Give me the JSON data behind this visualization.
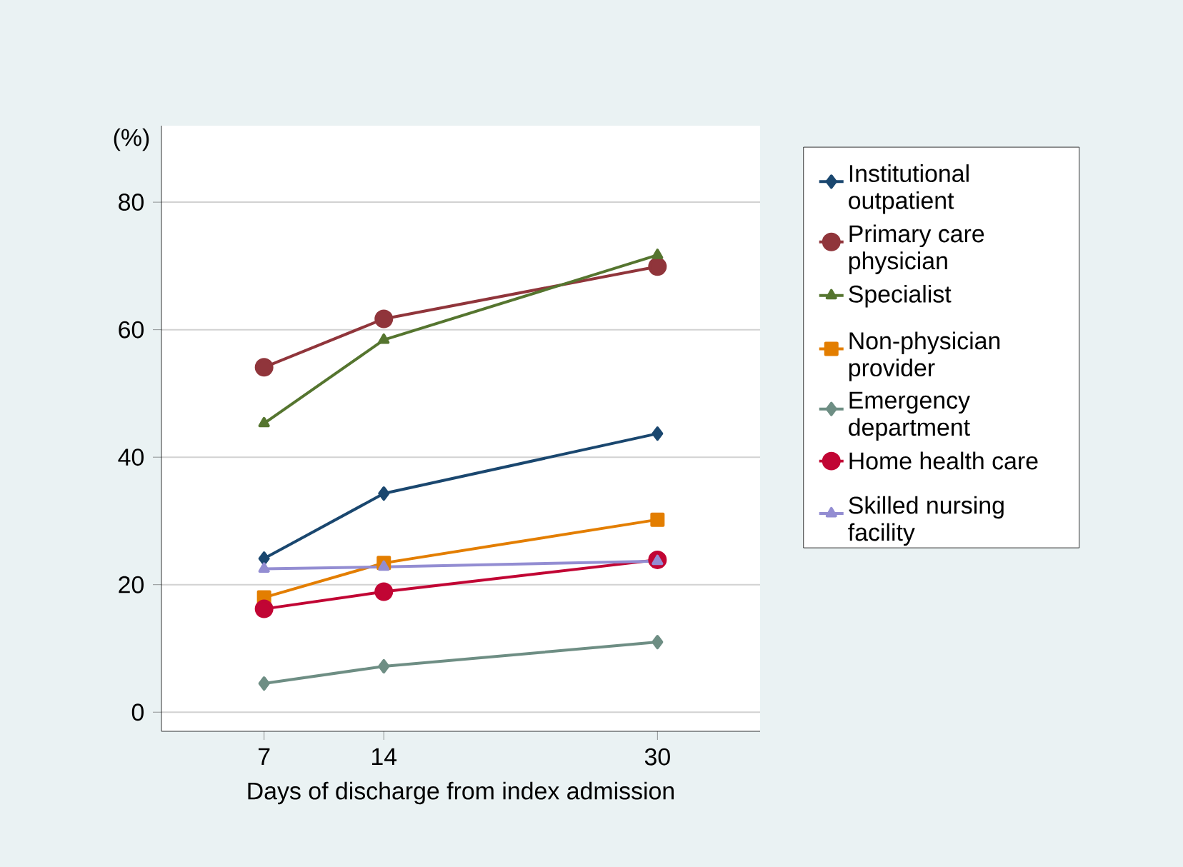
{
  "chart_data": {
    "type": "line",
    "xlabel": "Days of discharge from index admission",
    "ylabel": "(%)",
    "x": [
      7,
      14,
      30
    ],
    "xlim": [
      1,
      36
    ],
    "xticks": [
      7,
      14,
      30
    ],
    "ylim": [
      -3,
      92
    ],
    "yticks": [
      0,
      20,
      40,
      60,
      80
    ],
    "grid": "y",
    "legend": "right",
    "line_style": "solid",
    "series": [
      {
        "name": "Institutional outpatient",
        "color": "#1a476f",
        "marker": "diamond",
        "values": [
          24.1,
          34.3,
          43.7
        ]
      },
      {
        "name": "Primary care physician",
        "color": "#90353b",
        "marker": "circle",
        "values": [
          54.1,
          61.7,
          69.9
        ]
      },
      {
        "name": "Specialist",
        "color": "#55752f",
        "marker": "triangle",
        "values": [
          45.3,
          58.4,
          71.7
        ]
      },
      {
        "name": "Non-physician provider",
        "color": "#e37e00",
        "marker": "square",
        "values": [
          18.0,
          23.4,
          30.2
        ]
      },
      {
        "name": "Emergency department",
        "color": "#6e8e84",
        "marker": "diamond",
        "values": [
          4.5,
          7.2,
          11.0
        ]
      },
      {
        "name": "Home health care",
        "color": "#c10534",
        "marker": "circle",
        "values": [
          16.2,
          18.9,
          23.9
        ]
      },
      {
        "name": "Skilled nursing facility",
        "color": "#938dd2",
        "marker": "triangle",
        "values": [
          22.5,
          22.8,
          23.7
        ]
      }
    ]
  }
}
